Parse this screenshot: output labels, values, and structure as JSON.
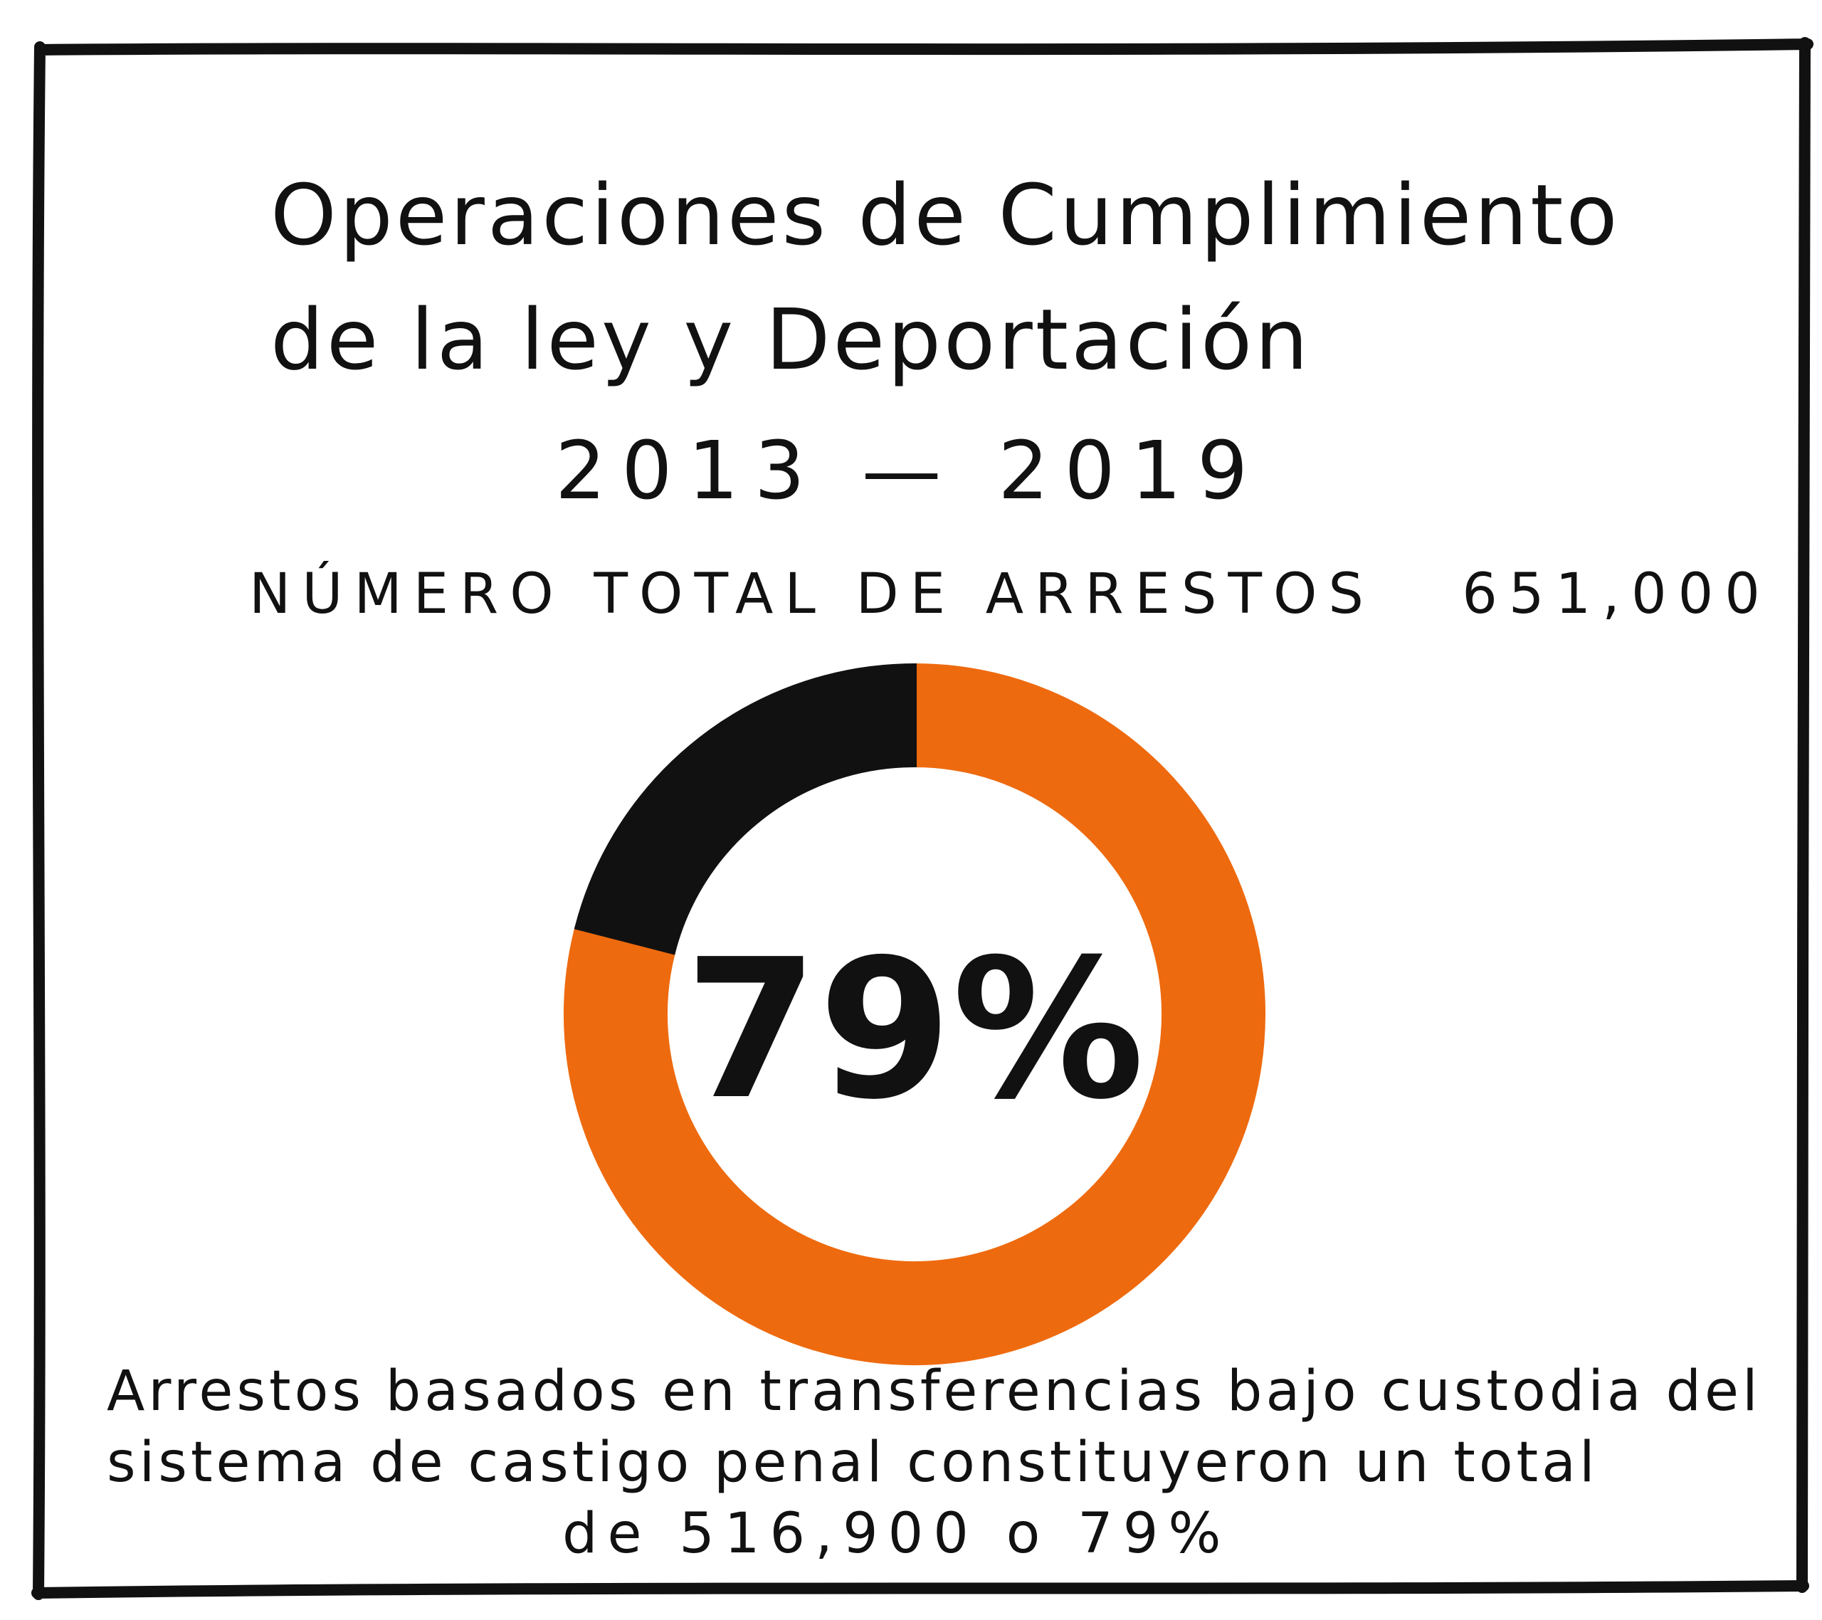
{
  "title_line1": "Operaciones de Cumplimiento",
  "title_line2": "de la ley y Deportación",
  "title_line3": "2013 — 2019",
  "total_label": "NÚMERO TOTAL DE ARRESTOS",
  "total_value": "651,000",
  "note_line1": "Arrestos basados en transferencias bajo custodia del",
  "note_line2": "sistema de castigo penal constituyeron un total",
  "note_line3": "de 516,900 o 79%",
  "chart_data": {
    "type": "pie",
    "style": "donut",
    "center_label": "79%",
    "slices": [
      {
        "value": 79,
        "color": "#ee6a0e"
      },
      {
        "value": 21,
        "color": "#111111"
      }
    ]
  }
}
